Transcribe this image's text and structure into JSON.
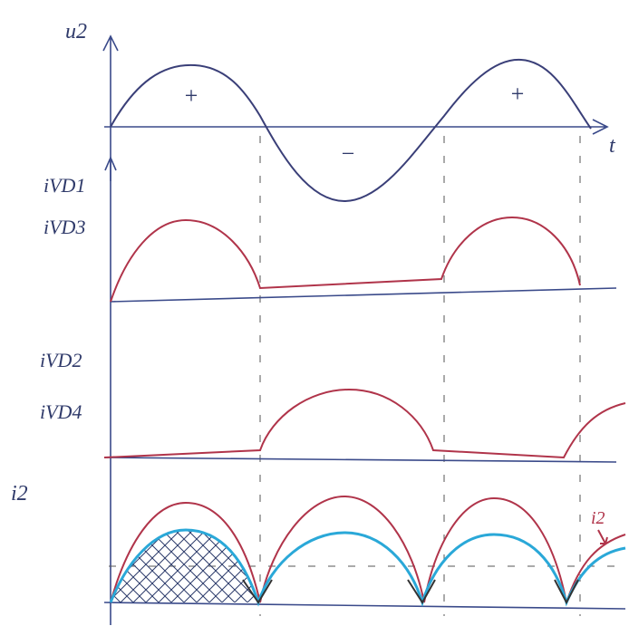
{
  "axis": {
    "y_label": "u2",
    "x_label": "t"
  },
  "signs": [
    "+",
    "−",
    "+"
  ],
  "panels": [
    {
      "labels": [
        "iVD1",
        "iVD3"
      ]
    },
    {
      "labels": [
        "iVD2",
        "iVD4"
      ]
    },
    {
      "labels": [
        "i2"
      ],
      "annotation": "i2"
    }
  ]
}
